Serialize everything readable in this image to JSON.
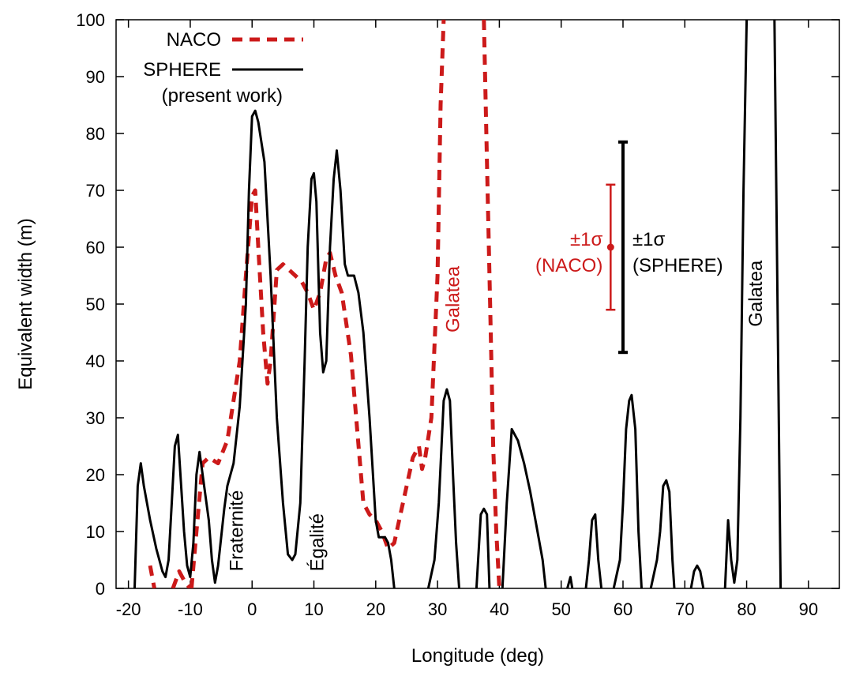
{
  "chart_data": {
    "type": "line",
    "xlabel": "Longitude (deg)",
    "ylabel": "Equivalent width (m)",
    "xlim": [
      -22,
      95
    ],
    "ylim": [
      0,
      100
    ],
    "xticks": [
      "-20",
      "-10",
      "0",
      "10",
      "20",
      "30",
      "40",
      "50",
      "60",
      "70",
      "80",
      "90"
    ],
    "yticks": [
      "0",
      "10",
      "20",
      "30",
      "40",
      "50",
      "60",
      "70",
      "80",
      "90",
      "100"
    ],
    "colors": {
      "naco": "#cc1a1a",
      "sphere": "#000000"
    },
    "legend": {
      "position": "top-left",
      "entries": [
        {
          "label": "NACO",
          "style": "dashed",
          "color": "#cc1a1a"
        },
        {
          "label": "SPHERE",
          "style": "solid",
          "color": "#000000"
        }
      ],
      "note": "(present work)"
    },
    "series": [
      {
        "name": "NACO",
        "style": "dashed",
        "color": "#cc1a1a",
        "segments": [
          [
            [
              -16.5,
              4
            ],
            [
              -15.8,
              0
            ]
          ],
          [
            [
              -12.8,
              0
            ],
            [
              -11.8,
              3
            ],
            [
              -10.8,
              1
            ],
            [
              -10,
              0
            ]
          ],
          [
            [
              -9.8,
              0
            ],
            [
              -9,
              10
            ],
            [
              -8,
              22
            ],
            [
              -7,
              23
            ],
            [
              -5.5,
              22
            ],
            [
              -4,
              26
            ],
            [
              -2,
              40
            ],
            [
              -1,
              55
            ],
            [
              0,
              69
            ],
            [
              0.5,
              70
            ],
            [
              1,
              60
            ],
            [
              1.8,
              45
            ],
            [
              2.5,
              36
            ],
            [
              3,
              40
            ],
            [
              4,
              56
            ],
            [
              5,
              57
            ],
            [
              6,
              56
            ],
            [
              7,
              55
            ],
            [
              8,
              54
            ],
            [
              9,
              52
            ],
            [
              10,
              49
            ],
            [
              11,
              52
            ],
            [
              12,
              58
            ],
            [
              12.6,
              59
            ],
            [
              13.5,
              55
            ],
            [
              14.5,
              52
            ],
            [
              16,
              41
            ],
            [
              17,
              28
            ],
            [
              18,
              15
            ],
            [
              19,
              13
            ],
            [
              20,
              12
            ],
            [
              21,
              10
            ],
            [
              22,
              7
            ],
            [
              23,
              8
            ],
            [
              24,
              13
            ],
            [
              25,
              18
            ],
            [
              26,
              23
            ],
            [
              27,
              25
            ],
            [
              27.5,
              21
            ],
            [
              28,
              23
            ],
            [
              29,
              30
            ],
            [
              30,
              55
            ],
            [
              30.5,
              85
            ],
            [
              31,
              100
            ]
          ],
          [
            [
              37.5,
              100
            ],
            [
              38,
              75
            ],
            [
              38.5,
              50
            ],
            [
              39,
              25
            ],
            [
              39.5,
              10
            ],
            [
              40,
              0
            ]
          ]
        ]
      },
      {
        "name": "SPHERE",
        "style": "solid",
        "color": "#000000",
        "segments": [
          [
            [
              -19,
              0
            ],
            [
              -18.5,
              18
            ],
            [
              -18,
              22
            ],
            [
              -17.5,
              18
            ],
            [
              -16.5,
              12
            ],
            [
              -15.5,
              7
            ],
            [
              -14.5,
              3
            ],
            [
              -14,
              2
            ],
            [
              -13.5,
              5
            ],
            [
              -13,
              15
            ],
            [
              -12.5,
              25
            ],
            [
              -12,
              27
            ],
            [
              -11.7,
              22
            ],
            [
              -11,
              10
            ],
            [
              -10.5,
              4
            ],
            [
              -10,
              2
            ],
            [
              -9.5,
              8
            ],
            [
              -9,
              20
            ],
            [
              -8.5,
              24
            ],
            [
              -8,
              20
            ],
            [
              -7,
              12
            ],
            [
              -6.5,
              5
            ],
            [
              -6,
              1
            ],
            [
              -5.5,
              4
            ],
            [
              -4.5,
              14
            ],
            [
              -4,
              18
            ],
            [
              -3,
              22
            ],
            [
              -2,
              32
            ],
            [
              -1,
              50
            ],
            [
              -0.5,
              70
            ],
            [
              0,
              83
            ],
            [
              0.5,
              84
            ],
            [
              1,
              82
            ],
            [
              2,
              75
            ],
            [
              3,
              55
            ],
            [
              4,
              30
            ],
            [
              5,
              15
            ],
            [
              5.8,
              6
            ],
            [
              6.5,
              5
            ],
            [
              7,
              6
            ],
            [
              7.8,
              15
            ],
            [
              8.5,
              40
            ],
            [
              9,
              60
            ],
            [
              9.6,
              72
            ],
            [
              10,
              73
            ],
            [
              10.4,
              68
            ],
            [
              11,
              45
            ],
            [
              11.5,
              38
            ],
            [
              12,
              40
            ],
            [
              12.6,
              60
            ],
            [
              13.2,
              72
            ],
            [
              13.7,
              77
            ],
            [
              14.3,
              70
            ],
            [
              15,
              57
            ],
            [
              15.5,
              55
            ],
            [
              16,
              55
            ],
            [
              16.5,
              55
            ],
            [
              17.2,
              52
            ],
            [
              18,
              45
            ],
            [
              19,
              30
            ],
            [
              20,
              12
            ],
            [
              20.5,
              9
            ],
            [
              21.5,
              9
            ],
            [
              22,
              8
            ],
            [
              22.5,
              5
            ],
            [
              23,
              0
            ]
          ],
          [
            [
              28.5,
              0
            ],
            [
              29.5,
              5
            ],
            [
              30.2,
              15
            ],
            [
              31,
              33
            ],
            [
              31.5,
              35
            ],
            [
              32,
              33
            ],
            [
              32.5,
              20
            ],
            [
              33,
              8
            ],
            [
              33.5,
              0
            ]
          ],
          [
            [
              36.3,
              0
            ],
            [
              37,
              13
            ],
            [
              37.5,
              14
            ],
            [
              38,
              13
            ],
            [
              38.4,
              0
            ]
          ],
          [
            [
              40.5,
              0
            ],
            [
              41.2,
              15
            ],
            [
              42,
              28
            ],
            [
              43,
              26
            ],
            [
              44,
              22
            ],
            [
              45,
              17
            ],
            [
              46,
              11
            ],
            [
              47,
              5
            ],
            [
              47.5,
              0
            ]
          ],
          [
            [
              51,
              0
            ],
            [
              51.5,
              2
            ],
            [
              51.8,
              0
            ]
          ],
          [
            [
              54,
              0
            ],
            [
              54.5,
              5
            ],
            [
              55,
              12
            ],
            [
              55.5,
              13
            ],
            [
              56,
              5
            ],
            [
              56.5,
              0
            ]
          ],
          [
            [
              58.5,
              0
            ],
            [
              59.5,
              5
            ],
            [
              60,
              15
            ],
            [
              60.5,
              28
            ],
            [
              61,
              33
            ],
            [
              61.4,
              34
            ],
            [
              62,
              28
            ],
            [
              62.5,
              10
            ],
            [
              63,
              0
            ]
          ],
          [
            [
              64.5,
              0
            ],
            [
              65.5,
              5
            ],
            [
              66,
              10
            ],
            [
              66.5,
              18
            ],
            [
              67,
              19
            ],
            [
              67.5,
              17
            ],
            [
              68,
              5
            ],
            [
              68.3,
              0
            ]
          ],
          [
            [
              71,
              0
            ],
            [
              71.5,
              3
            ],
            [
              72,
              4
            ],
            [
              72.5,
              3
            ],
            [
              73,
              0
            ]
          ],
          [
            [
              76.5,
              0
            ],
            [
              77,
              12
            ],
            [
              77.5,
              5
            ],
            [
              78,
              1
            ],
            [
              78.5,
              5
            ],
            [
              79,
              30
            ],
            [
              79.5,
              70
            ],
            [
              80,
              100
            ]
          ],
          [
            [
              84.5,
              100
            ],
            [
              85,
              50
            ],
            [
              85.5,
              0
            ]
          ]
        ]
      }
    ],
    "error_bars": [
      {
        "name": "NACO",
        "x": 58.0,
        "y": 60,
        "low": 49,
        "high": 71,
        "color": "#cc1a1a",
        "label_lines": [
          "±1σ",
          "(NACO)"
        ]
      },
      {
        "name": "SPHERE",
        "x": 60.0,
        "y": 60,
        "low": 41.5,
        "high": 78.5,
        "color": "#000000",
        "label_lines": [
          "±1σ",
          "(SPHERE)"
        ]
      }
    ],
    "annotations": [
      {
        "text": "Fraternité",
        "x": -1.5,
        "y": 3,
        "rotation": -90,
        "color": "#000000"
      },
      {
        "text": "Égalité",
        "x": 11.5,
        "y": 3,
        "rotation": -90,
        "color": "#000000"
      },
      {
        "text": "Galatea",
        "x": 33.5,
        "y": 45,
        "rotation": -90,
        "color": "#cc1a1a"
      },
      {
        "text": "Galatea",
        "x": 82.5,
        "y": 46,
        "rotation": -90,
        "color": "#000000"
      }
    ]
  }
}
